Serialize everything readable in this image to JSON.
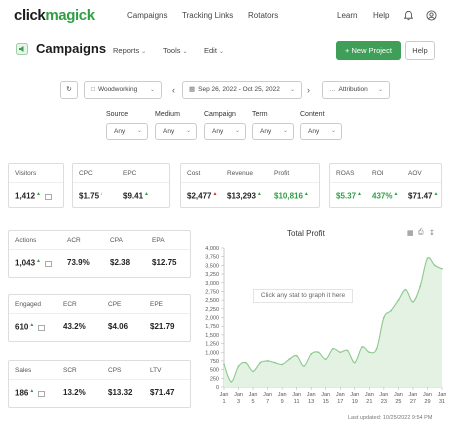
{
  "nav": {
    "logo_part1": "click",
    "logo_part2": "magick",
    "links": [
      "Campaigns",
      "Tracking Links",
      "Rotators"
    ],
    "learn": "Learn",
    "help": "Help",
    "icons": [
      "bell-icon",
      "user-circle-icon"
    ]
  },
  "header": {
    "title": "Campaigns",
    "menus": [
      "Reports",
      "Tools",
      "Edit"
    ],
    "new_project": "+ New Project",
    "help": "Help"
  },
  "controls": {
    "group": "Woodworking",
    "date_range": "Sep 26, 2022 - Oct 25, 2022",
    "attribution": "Attribution"
  },
  "filters": [
    {
      "label": "Source",
      "value": "Any"
    },
    {
      "label": "Medium",
      "value": "Any"
    },
    {
      "label": "Campaign",
      "value": "Any"
    },
    {
      "label": "Term",
      "value": "Any"
    },
    {
      "label": "Content",
      "value": "Any"
    }
  ],
  "stats": {
    "visitors": {
      "label": "Visitors",
      "value": "1,412"
    },
    "cpc": {
      "label": "CPC",
      "value": "$1.75"
    },
    "epc": {
      "label": "EPC",
      "value": "$9.41"
    },
    "cost": {
      "label": "Cost",
      "value": "$2,477"
    },
    "revenue": {
      "label": "Revenue",
      "value": "$13,293"
    },
    "profit": {
      "label": "Profit",
      "value": "$10,816"
    },
    "roas": {
      "label": "ROAS",
      "value": "$5.37"
    },
    "roi": {
      "label": "ROI",
      "value": "437%"
    },
    "aov": {
      "label": "AOV",
      "value": "$71.47"
    },
    "actions": {
      "label": "Actions",
      "value": "1,043"
    },
    "acr": {
      "label": "ACR",
      "value": "73.9%"
    },
    "cpa": {
      "label": "CPA",
      "value": "$2.38"
    },
    "epa": {
      "label": "EPA",
      "value": "$12.75"
    },
    "engaged": {
      "label": "Engaged",
      "value": "610"
    },
    "ecr": {
      "label": "ECR",
      "value": "43.2%"
    },
    "cpe": {
      "label": "CPE",
      "value": "$4.06"
    },
    "epe": {
      "label": "EPE",
      "value": "$21.79"
    },
    "sales": {
      "label": "Sales",
      "value": "186"
    },
    "scr": {
      "label": "SCR",
      "value": "13.2%"
    },
    "cps": {
      "label": "CPS",
      "value": "$13.32"
    },
    "ltv": {
      "label": "LTV",
      "value": "$71.47"
    }
  },
  "chart_hint": "Click any stat to graph it here",
  "last_updated": "Last updated: 10/25/2022 9:54 PM",
  "colors": {
    "accent": "#3f9e57",
    "area_fill": "#e3f2e3",
    "line": "#8cc98e"
  },
  "chart_data": {
    "type": "area",
    "title": "Total Profit",
    "x_tick_labels": [
      "Jan 1",
      "Jan 3",
      "Jan 5",
      "Jan 7",
      "Jan 9",
      "Jan 11",
      "Jan 13",
      "Jan 15",
      "Jan 17",
      "Jan 19",
      "Jan 21",
      "Jan 23",
      "Jan 25",
      "Jan 27",
      "Jan 29",
      "Jan 31"
    ],
    "x": [
      1,
      2,
      3,
      4,
      5,
      6,
      7,
      8,
      9,
      10,
      11,
      12,
      13,
      14,
      15,
      16,
      17,
      18,
      19,
      20,
      21,
      22,
      23,
      24,
      25,
      26,
      27,
      28,
      29,
      30,
      31
    ],
    "values": [
      650,
      150,
      600,
      700,
      450,
      700,
      750,
      700,
      650,
      800,
      900,
      600,
      950,
      1000,
      800,
      1100,
      1000,
      1050,
      700,
      1150,
      1000,
      1100,
      2000,
      2200,
      2500,
      2800,
      2450,
      2900,
      3700,
      3500,
      3400
    ],
    "ylim": [
      0,
      4000
    ],
    "yticks": [
      0,
      250,
      500,
      750,
      1000,
      1250,
      1500,
      1750,
      2000,
      2250,
      2500,
      2750,
      3000,
      3250,
      3500,
      3750,
      4000
    ],
    "ytick_labels": [
      "0",
      "250",
      "500",
      "750",
      "1,000",
      "1,250",
      "1,500",
      "1,750",
      "2,000",
      "2,250",
      "2,500",
      "2,750",
      "3,000",
      "3,250",
      "3,500",
      "3,750",
      "4,000"
    ],
    "grid": false,
    "legend": "none"
  }
}
